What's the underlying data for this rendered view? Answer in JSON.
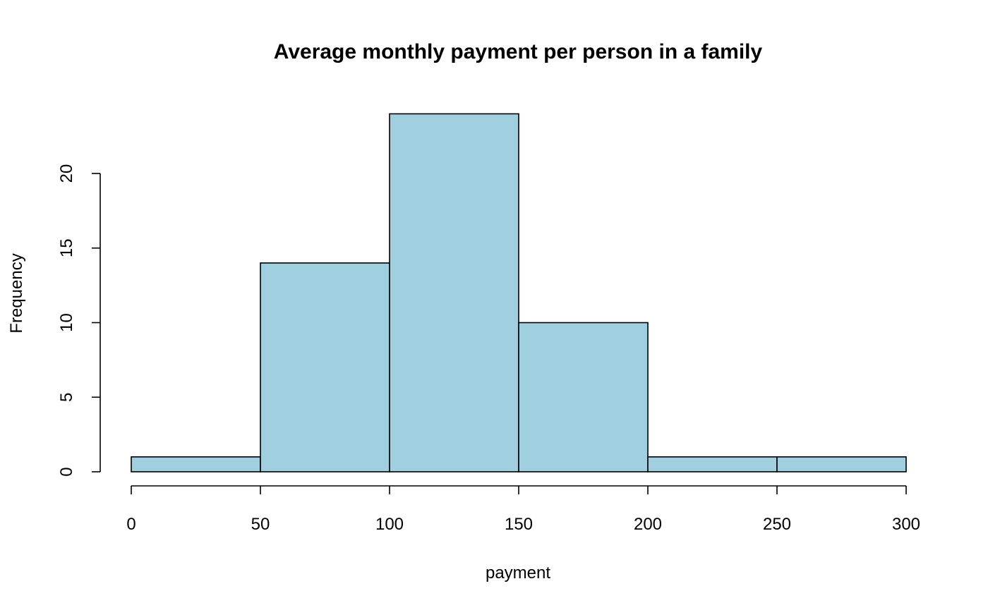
{
  "chart_data": {
    "type": "bar",
    "subtype": "histogram",
    "title": "Average monthly payment per person in a family",
    "xlabel": "payment",
    "ylabel": "Frequency",
    "bins": [
      {
        "start": 0,
        "end": 50,
        "count": 1
      },
      {
        "start": 50,
        "end": 100,
        "count": 14
      },
      {
        "start": 100,
        "end": 150,
        "count": 24
      },
      {
        "start": 150,
        "end": 200,
        "count": 10
      },
      {
        "start": 200,
        "end": 250,
        "count": 1
      },
      {
        "start": 250,
        "end": 300,
        "count": 1
      }
    ],
    "xlim": [
      0,
      300
    ],
    "ylim": [
      0,
      24
    ],
    "x_ticks": [
      0,
      50,
      100,
      150,
      200,
      250,
      300
    ],
    "y_ticks": [
      0,
      5,
      10,
      15,
      20
    ],
    "bar_color": "#a0cfe0",
    "edge_color": "#000000",
    "grid": false
  }
}
